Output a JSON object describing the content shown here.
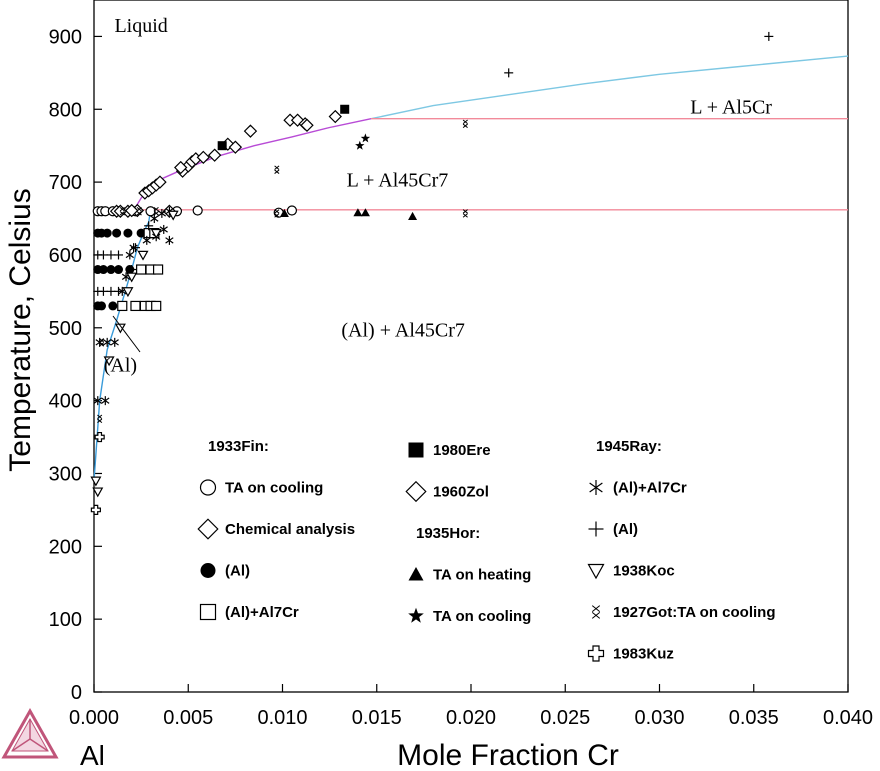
{
  "chart_data": {
    "type": "scatter",
    "title": "",
    "xlabel": "Mole Fraction Cr",
    "ylabel": "Temperature, Celsius",
    "element_label": "Al",
    "xlim": [
      0,
      0.04
    ],
    "ylim": [
      0,
      950
    ],
    "x_ticks": [
      "0.000",
      "0.005",
      "0.010",
      "0.015",
      "0.020",
      "0.025",
      "0.030",
      "0.035",
      "0.040"
    ],
    "y_ticks": [
      "0",
      "100",
      "200",
      "300",
      "400",
      "500",
      "600",
      "700",
      "800",
      "900"
    ],
    "region_labels": [
      {
        "text": "Liquid",
        "x": 0.0025,
        "y": 906
      },
      {
        "text": "L + Al5Cr",
        "x": 0.0338,
        "y": 794
      },
      {
        "text": "L + Al45Cr7",
        "x": 0.0161,
        "y": 694
      },
      {
        "text": "(Al) + Al45Cr7",
        "x": 0.0164,
        "y": 488
      },
      {
        "text": "(Al)",
        "x": 0.0014,
        "y": 440
      }
    ],
    "lines": [
      {
        "name": "L / L+Al5Cr boundary",
        "color": "#7ec8e3",
        "points": [
          [
            0.0147,
            787
          ],
          [
            0.018,
            805
          ],
          [
            0.022,
            820
          ],
          [
            0.026,
            835
          ],
          [
            0.03,
            848
          ],
          [
            0.034,
            858
          ],
          [
            0.04,
            873
          ]
        ]
      },
      {
        "name": "liquidus (Al45Cr7)",
        "color": "#b84bd6",
        "points": [
          [
            0.0021,
            661
          ],
          [
            0.0025,
            678
          ],
          [
            0.0032,
            700
          ],
          [
            0.0045,
            715
          ],
          [
            0.0065,
            735
          ],
          [
            0.0085,
            750
          ],
          [
            0.0105,
            762
          ],
          [
            0.0125,
            775
          ],
          [
            0.0147,
            787
          ]
        ]
      },
      {
        "name": "Al5Cr peritectic",
        "color": "#f28a9a",
        "points": [
          [
            0.0147,
            787
          ],
          [
            0.04,
            787
          ]
        ]
      },
      {
        "name": "Al45Cr7 peritectic",
        "color": "#f28a9a",
        "points": [
          [
            0.0,
            662
          ],
          [
            0.04,
            662
          ]
        ]
      },
      {
        "name": "(Al) solvus / solidus",
        "color": "#3a9bd9",
        "points": [
          [
            0.0,
            290
          ],
          [
            0.0003,
            400
          ],
          [
            0.0007,
            470
          ],
          [
            0.0012,
            510
          ],
          [
            0.0016,
            545
          ],
          [
            0.002,
            580
          ],
          [
            0.0023,
            610
          ],
          [
            0.0027,
            635
          ],
          [
            0.0029,
            645
          ],
          [
            0.003,
            662
          ]
        ]
      }
    ],
    "series": [
      {
        "name": "TA on cooling",
        "group": "1933Fin",
        "marker": "circle-open",
        "points": [
          [
            0.0002,
            660
          ],
          [
            0.0004,
            660
          ],
          [
            0.0006,
            660
          ],
          [
            0.001,
            660
          ],
          [
            0.0013,
            660
          ],
          [
            0.0022,
            660
          ],
          [
            0.003,
            660
          ],
          [
            0.0044,
            660
          ],
          [
            0.0055,
            661
          ],
          [
            0.0098,
            658
          ],
          [
            0.0105,
            661
          ]
        ]
      },
      {
        "name": "Chemical analysis",
        "group": "1933Fin",
        "marker": "diamond-open",
        "points": [
          [
            0.0012,
            660
          ],
          [
            0.0018,
            660
          ],
          [
            0.0023,
            661
          ],
          [
            0.0027,
            685
          ],
          [
            0.0029,
            688
          ],
          [
            0.0031,
            692
          ],
          [
            0.0033,
            696
          ],
          [
            0.0035,
            700
          ],
          [
            0.004,
            660
          ],
          [
            0.0047,
            715
          ],
          [
            0.005,
            722
          ],
          [
            0.0052,
            728
          ],
          [
            0.0054,
            732
          ],
          [
            0.0064,
            737
          ],
          [
            0.0071,
            752
          ],
          [
            0.0075,
            748
          ],
          [
            0.0083,
            770
          ],
          [
            0.0104,
            785
          ],
          [
            0.0108,
            785
          ],
          [
            0.0112,
            780
          ],
          [
            0.0113,
            778
          ],
          [
            0.0128,
            790
          ]
        ]
      },
      {
        "name": "(Al)",
        "group": "1933Fin",
        "marker": "circle-filled",
        "points": [
          [
            0.0002,
            630
          ],
          [
            0.0004,
            630
          ],
          [
            0.0007,
            630
          ],
          [
            0.0012,
            630
          ],
          [
            0.0018,
            630
          ],
          [
            0.0025,
            630
          ],
          [
            0.0028,
            630
          ],
          [
            0.0002,
            580
          ],
          [
            0.0005,
            580
          ],
          [
            0.0009,
            580
          ],
          [
            0.0013,
            580
          ],
          [
            0.0019,
            580
          ],
          [
            0.0002,
            530
          ],
          [
            0.0004,
            530
          ],
          [
            0.001,
            530
          ]
        ]
      },
      {
        "name": "(Al)+Al7Cr",
        "group": "1933Fin",
        "marker": "square-open",
        "points": [
          [
            0.0015,
            530
          ],
          [
            0.0022,
            530
          ],
          [
            0.0027,
            530
          ],
          [
            0.003,
            530
          ],
          [
            0.0033,
            530
          ],
          [
            0.0025,
            580
          ],
          [
            0.003,
            580
          ],
          [
            0.0034,
            580
          ],
          [
            0.0029,
            630
          ],
          [
            0.0032,
            630
          ]
        ]
      },
      {
        "name": "1980Ere",
        "group": "",
        "marker": "square-filled",
        "points": [
          [
            0.0068,
            750
          ],
          [
            0.0133,
            800
          ]
        ]
      },
      {
        "name": "1960Zol",
        "group": "",
        "marker": "diamond-open",
        "points": [
          [
            0.0014,
            660
          ],
          [
            0.002,
            661
          ],
          [
            0.0046,
            720
          ],
          [
            0.0058,
            734
          ]
        ]
      },
      {
        "name": "TA on heating",
        "group": "1935Hor",
        "marker": "triangle-filled",
        "points": [
          [
            0.0101,
            657
          ],
          [
            0.014,
            658
          ],
          [
            0.0144,
            658
          ],
          [
            0.0169,
            653
          ]
        ]
      },
      {
        "name": "TA on cooling",
        "group": "1935Hor",
        "marker": "star-filled",
        "points": [
          [
            0.0141,
            750
          ],
          [
            0.0144,
            760
          ]
        ]
      },
      {
        "name": "(Al)+Al7Cr",
        "group": "1945Ray",
        "marker": "asterisk",
        "points": [
          [
            0.0002,
            400
          ],
          [
            0.0006,
            400
          ],
          [
            0.0003,
            480
          ],
          [
            0.0007,
            480
          ],
          [
            0.0011,
            480
          ],
          [
            0.0015,
            550
          ],
          [
            0.0017,
            570
          ],
          [
            0.0019,
            600
          ],
          [
            0.0021,
            610
          ],
          [
            0.0028,
            620
          ],
          [
            0.0033,
            625
          ],
          [
            0.0037,
            635
          ],
          [
            0.004,
            620
          ],
          [
            0.0032,
            650
          ],
          [
            0.0036,
            657
          ],
          [
            0.004,
            660
          ]
        ]
      },
      {
        "name": "(Al)",
        "group": "1945Ray",
        "marker": "plus",
        "points": [
          [
            0.0002,
            600
          ],
          [
            0.0005,
            600
          ],
          [
            0.0009,
            600
          ],
          [
            0.0013,
            600
          ],
          [
            0.0002,
            550
          ],
          [
            0.0005,
            550
          ],
          [
            0.0009,
            550
          ],
          [
            0.0013,
            550
          ],
          [
            0.002,
            580
          ],
          [
            0.0022,
            610
          ],
          [
            0.0029,
            640
          ],
          [
            0.022,
            850
          ],
          [
            0.0358,
            900
          ]
        ]
      },
      {
        "name": "1938Koc",
        "group": "",
        "marker": "triangle-open",
        "points": [
          [
            0.0001,
            290
          ],
          [
            0.0002,
            275
          ],
          [
            0.0008,
            455
          ],
          [
            0.0014,
            500
          ],
          [
            0.0018,
            550
          ],
          [
            0.002,
            570
          ],
          [
            0.0026,
            600
          ],
          [
            0.0033,
            630
          ],
          [
            0.0042,
            655
          ]
        ]
      },
      {
        "name": "1927Got:TA on cooling",
        "group": "",
        "marker": "double-x",
        "points": [
          [
            0.0003,
            375
          ],
          [
            0.0004,
            480
          ],
          [
            0.0015,
            660
          ],
          [
            0.0024,
            660
          ],
          [
            0.0033,
            660
          ],
          [
            0.0097,
            717
          ],
          [
            0.0097,
            657
          ],
          [
            0.0197,
            780
          ],
          [
            0.0197,
            657
          ]
        ]
      },
      {
        "name": "1983Kuz",
        "group": "",
        "marker": "open-cross",
        "points": [
          [
            0.0001,
            250
          ],
          [
            0.0003,
            350
          ]
        ]
      }
    ],
    "legend": {
      "placement": "lower-middle",
      "columns": [
        [
          {
            "type": "header",
            "text": "1933Fin:"
          },
          {
            "type": "entry",
            "marker": "circle-open",
            "text": "TA on cooling"
          },
          {
            "type": "entry",
            "marker": "diamond-open",
            "text": "Chemical analysis"
          },
          {
            "type": "entry",
            "marker": "circle-filled",
            "text": "(Al)"
          },
          {
            "type": "entry",
            "marker": "square-open",
            "text": "(Al)+Al7Cr"
          }
        ],
        [
          {
            "type": "entry",
            "marker": "square-filled",
            "text": "1980Ere"
          },
          {
            "type": "entry",
            "marker": "diamond-open",
            "text": "1960Zol"
          },
          {
            "type": "header",
            "text": "1935Hor:"
          },
          {
            "type": "entry",
            "marker": "triangle-filled",
            "text": "TA on heating"
          },
          {
            "type": "entry",
            "marker": "star-filled",
            "text": "TA on cooling"
          }
        ],
        [
          {
            "type": "header",
            "text": "1945Ray:"
          },
          {
            "type": "entry",
            "marker": "asterisk",
            "text": "(Al)+Al7Cr"
          },
          {
            "type": "entry",
            "marker": "plus",
            "text": "(Al)"
          },
          {
            "type": "entry",
            "marker": "triangle-open",
            "text": "1938Koc"
          },
          {
            "type": "entry",
            "marker": "double-x",
            "text": "1927Got:TA on cooling"
          },
          {
            "type": "entry",
            "marker": "open-cross",
            "text": "1983Kuz"
          }
        ]
      ]
    }
  }
}
